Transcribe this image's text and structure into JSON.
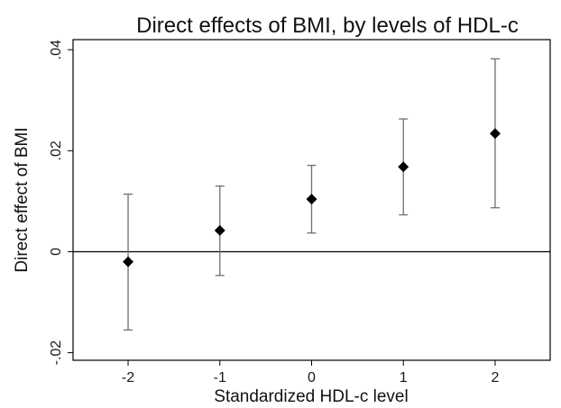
{
  "chart_data": {
    "type": "scatter",
    "title": "Direct effects of BMI, by levels of HDL-c",
    "xlabel": "Standardized HDL-c level",
    "ylabel": "Direct effect of BMI",
    "xlim": [
      -2.6,
      2.6
    ],
    "ylim": [
      -0.0215,
      0.042
    ],
    "x_ticks": [
      -2,
      -1,
      0,
      1,
      2
    ],
    "x_tick_labels": [
      "-2",
      "-1",
      "0",
      "1",
      "2"
    ],
    "y_ticks": [
      -0.02,
      0,
      0.02,
      0.04
    ],
    "y_tick_labels": [
      "-.02",
      "0",
      ".02",
      ".04"
    ],
    "reference_line_y": 0,
    "grid": false,
    "marker": "diamond",
    "marker_color": "#000000",
    "errorbar_color": "#6e6e6e",
    "points": [
      {
        "x": -2,
        "y": -0.002,
        "lower": -0.0155,
        "upper": 0.0114
      },
      {
        "x": -1,
        "y": 0.0042,
        "lower": -0.0047,
        "upper": 0.013
      },
      {
        "x": 0,
        "y": 0.0104,
        "lower": 0.0037,
        "upper": 0.0171
      },
      {
        "x": 1,
        "y": 0.0168,
        "lower": 0.0073,
        "upper": 0.0263
      },
      {
        "x": 2,
        "y": 0.0234,
        "lower": 0.0087,
        "upper": 0.0382
      }
    ]
  }
}
